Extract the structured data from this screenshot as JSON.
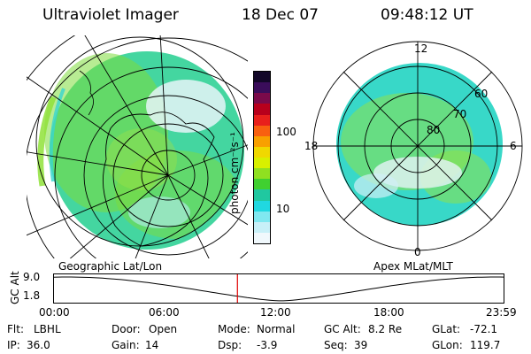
{
  "header": {
    "instrument": "Ultraviolet Imager",
    "date": "18 Dec 07",
    "time": "09:48:12 UT"
  },
  "left_panel": {
    "caption": "Geographic Lat/Lon"
  },
  "right_panel": {
    "caption": "Apex MLat/MLT",
    "mlt_labels": [
      "12",
      "18",
      "6",
      "0"
    ],
    "mlat_labels": [
      "60",
      "70",
      "80"
    ]
  },
  "colorbar": {
    "unit_label": "photon cm⁻²s⁻¹",
    "tick_labels": [
      "100",
      "10"
    ],
    "colors": [
      "#120728",
      "#3a0d5a",
      "#7a0a4a",
      "#b8001c",
      "#e8201c",
      "#f86010",
      "#f8a000",
      "#f0d800",
      "#d8f000",
      "#90e020",
      "#40d030",
      "#20c8a0",
      "#20d8e0",
      "#80e8f0",
      "#c8f0f8",
      "#f0f8fc"
    ]
  },
  "timeline": {
    "axis_label": "GC Alt",
    "y_ticks": [
      "9.0",
      "1.8"
    ],
    "x_ticks": [
      "00:00",
      "06:00",
      "12:00",
      "18:00",
      "23:59"
    ],
    "current_time_fraction": 0.4084
  },
  "footer": {
    "row1": [
      {
        "key": "Flt:",
        "value": "LBHL"
      },
      {
        "key": "Door:",
        "value": "Open"
      },
      {
        "key": "Mode:",
        "value": "Normal"
      },
      {
        "key": "GC Alt:",
        "value": "8.2 Re"
      },
      {
        "key": "GLat:",
        "value": "-72.1"
      }
    ],
    "row2": [
      {
        "key": "IP:",
        "value": "36.0"
      },
      {
        "key": "Gain:",
        "value": "14"
      },
      {
        "key": "Dsp:",
        "value": "-3.9"
      },
      {
        "key": "Seq:",
        "value": "39"
      },
      {
        "key": "GLon:",
        "value": "119.7"
      }
    ]
  }
}
